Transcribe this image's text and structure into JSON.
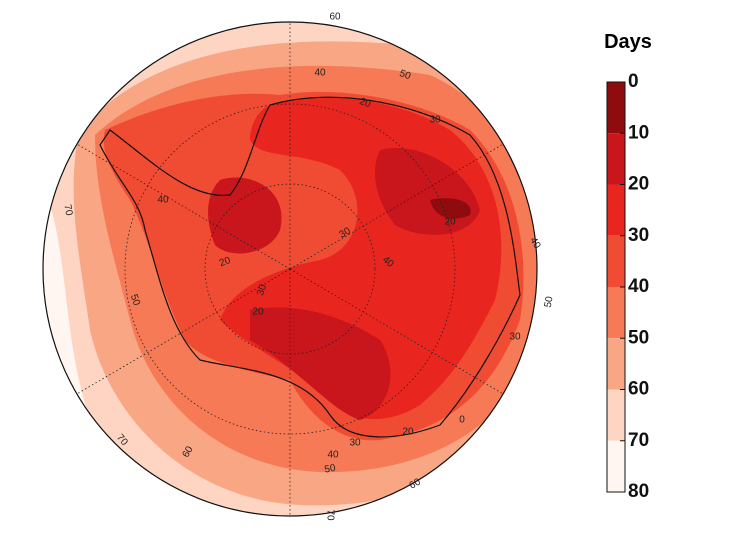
{
  "legend": {
    "title": "Days",
    "ticks": [
      0,
      10,
      20,
      30,
      40,
      50,
      60,
      70,
      80
    ],
    "colors": [
      "#8e0b0e",
      "#c9151c",
      "#e8261f",
      "#f04c34",
      "#f67a55",
      "#f9a685",
      "#fdd5c2",
      "#fff6f1"
    ]
  },
  "contour_labels": [
    "60",
    "40",
    "50",
    "20",
    "30",
    "70",
    "40",
    "40",
    "50",
    "30",
    "40",
    "20",
    "20",
    "30",
    "50",
    "30",
    "30",
    "20",
    "0",
    "40",
    "50",
    "60",
    "60",
    "70",
    "70",
    "20"
  ]
}
